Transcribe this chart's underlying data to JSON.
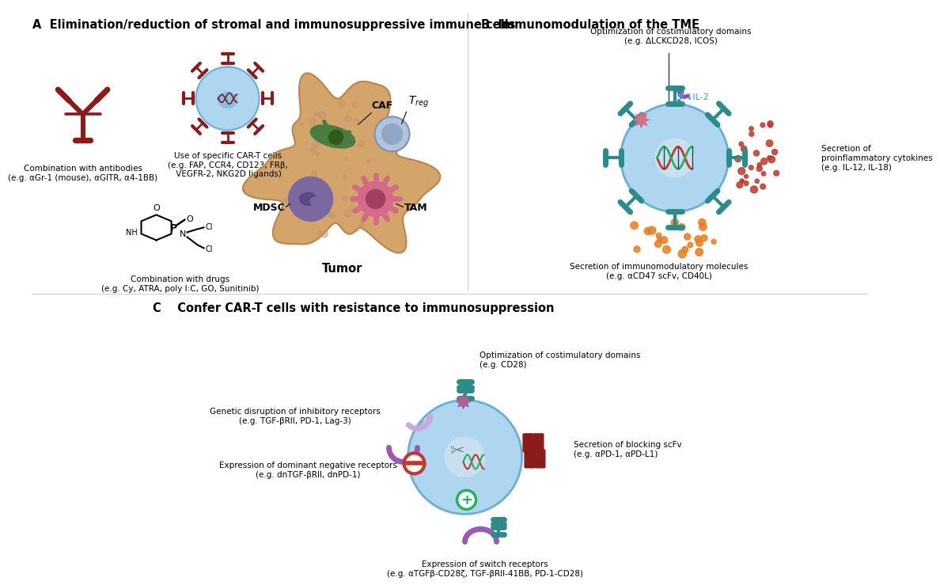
{
  "title_a": "A  Elimination/reduction of stromal and immunosuppressive immune cells",
  "title_b": "B  Immunomodulation of the TME",
  "title_c": "C    Confer CAR-T cells with resistance to immunosuppression",
  "label_combo_antibodies": "Combination with antibodies\n(e.g. αGr-1 (mouse), αGITR, α4-1BB)",
  "label_specific_cart": "Use of specific CAR-T cells\n(e.g. FAP, CCR4, CD123, FRβ,\n VEGFR-2, NKG2D ligands)",
  "label_combo_drugs": "Combination with drugs\n(e.g. Cy, ATRA, poly I:C, GO, Sunitinib)",
  "label_tumor": "Tumor",
  "label_CAF": "CAF",
  "label_MDSC": "MDSC",
  "label_TAM": "TAM",
  "label_optim_costim_b": "Optimization of costimulatory domains\n(e.g. ΔLCKCD28, ICOS)",
  "label_IL2": "↓IL-2",
  "label_secr_proinflam": "Secretion of\nproinflammatory cytokines\n(e.g. IL-12, IL-18)",
  "label_secr_immunomod": "Secretion of immunomodulatory molecules\n(e.g. αCD47 scFv, CD40L)",
  "label_optim_costim_c": "Optimization of costimulatory domains\n(e.g. CD28)",
  "label_genetic_disrupt": "Genetic disruption of inhibitory receptors\n(e.g. TGF-βRII, PD-1, Lag-3)",
  "label_dominant_neg": "Expression of dominant negative receptors\n(e.g. dnTGF-βRII, dnPD-1)",
  "label_switch_recept": "Expression of switch receptors\n(e.g. αTGFβ-CD28ζ, TGF-βRII-41BB, PD-1-CD28)",
  "label_secr_blocking": "Secretion of blocking scFv\n(e.g. αPD-1, αPD-L1)",
  "bg_color": "#ffffff",
  "teal_color": "#2e8b8b",
  "dark_red": "#8b1a1a",
  "light_blue_cell": "#aed6f1",
  "lighter_blue": "#d6eaf8",
  "tumor_color": "#d4a56a",
  "caf_green": "#4a7c3f",
  "mdsc_purple": "#7b68a0",
  "tam_pink": "#d4698a",
  "treg_lightblue": "#b0c4de",
  "purple_color": "#9b59b6",
  "red_color": "#c0392b"
}
